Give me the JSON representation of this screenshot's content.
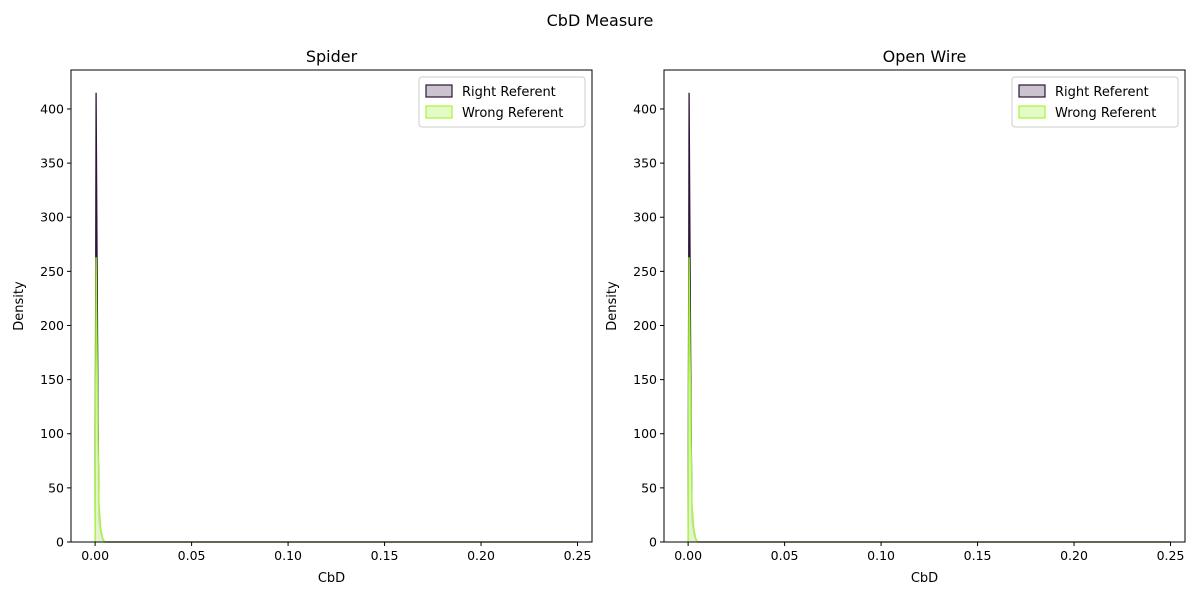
{
  "figure": {
    "title": "CbD Measure"
  },
  "chart_data": [
    {
      "type": "area",
      "title": "Spider",
      "xlabel": "CbD",
      "ylabel": "Density",
      "xlim": [
        -0.0125,
        0.2575
      ],
      "ylim": [
        0,
        436
      ],
      "xticks": [
        0.0,
        0.05,
        0.1,
        0.15,
        0.2,
        0.25
      ],
      "xtick_labels": [
        "0.00",
        "0.05",
        "0.10",
        "0.15",
        "0.20",
        "0.25"
      ],
      "yticks": [
        0,
        50,
        100,
        150,
        200,
        250,
        300,
        350,
        400
      ],
      "ytick_labels": [
        "0",
        "50",
        "100",
        "150",
        "200",
        "250",
        "300",
        "350",
        "400"
      ],
      "legend_position": "top-right",
      "grid": false,
      "series": [
        {
          "name": "Right Referent",
          "color": "#2d1537",
          "fill": "#cbc4cf",
          "x": [
            0.0,
            0.0005,
            0.001,
            0.0015,
            0.002,
            0.003,
            0.004,
            0.005,
            0.006,
            0.25
          ],
          "y": [
            0,
            415,
            262,
            120,
            20,
            8,
            2,
            0,
            0,
            0
          ]
        },
        {
          "name": "Wrong Referent",
          "color": "#a6f53a",
          "fill": "#e4fbc8",
          "x": [
            0.0,
            0.0005,
            0.001,
            0.0015,
            0.002,
            0.003,
            0.004,
            0.005,
            0.25
          ],
          "y": [
            0,
            263,
            180,
            100,
            35,
            12,
            3,
            0,
            0
          ]
        }
      ]
    },
    {
      "type": "area",
      "title": "Open Wire",
      "xlabel": "CbD",
      "ylabel": "Density",
      "xlim": [
        -0.0125,
        0.2575
      ],
      "ylim": [
        0,
        436
      ],
      "xticks": [
        0.0,
        0.05,
        0.1,
        0.15,
        0.2,
        0.25
      ],
      "xtick_labels": [
        "0.00",
        "0.05",
        "0.10",
        "0.15",
        "0.20",
        "0.25"
      ],
      "yticks": [
        0,
        50,
        100,
        150,
        200,
        250,
        300,
        350,
        400
      ],
      "ytick_labels": [
        "0",
        "50",
        "100",
        "150",
        "200",
        "250",
        "300",
        "350",
        "400"
      ],
      "legend_position": "top-right",
      "grid": false,
      "series": [
        {
          "name": "Right Referent",
          "color": "#2d1537",
          "fill": "#cbc4cf",
          "x": [
            0.0,
            0.0005,
            0.001,
            0.0015,
            0.002,
            0.003,
            0.004,
            0.005,
            0.006,
            0.25
          ],
          "y": [
            0,
            415,
            262,
            120,
            20,
            8,
            2,
            0,
            0,
            0
          ]
        },
        {
          "name": "Wrong Referent",
          "color": "#a6f53a",
          "fill": "#e4fbc8",
          "x": [
            0.0,
            0.0005,
            0.001,
            0.0015,
            0.002,
            0.003,
            0.004,
            0.005,
            0.25
          ],
          "y": [
            0,
            263,
            180,
            100,
            35,
            12,
            3,
            0,
            0
          ]
        }
      ]
    }
  ]
}
